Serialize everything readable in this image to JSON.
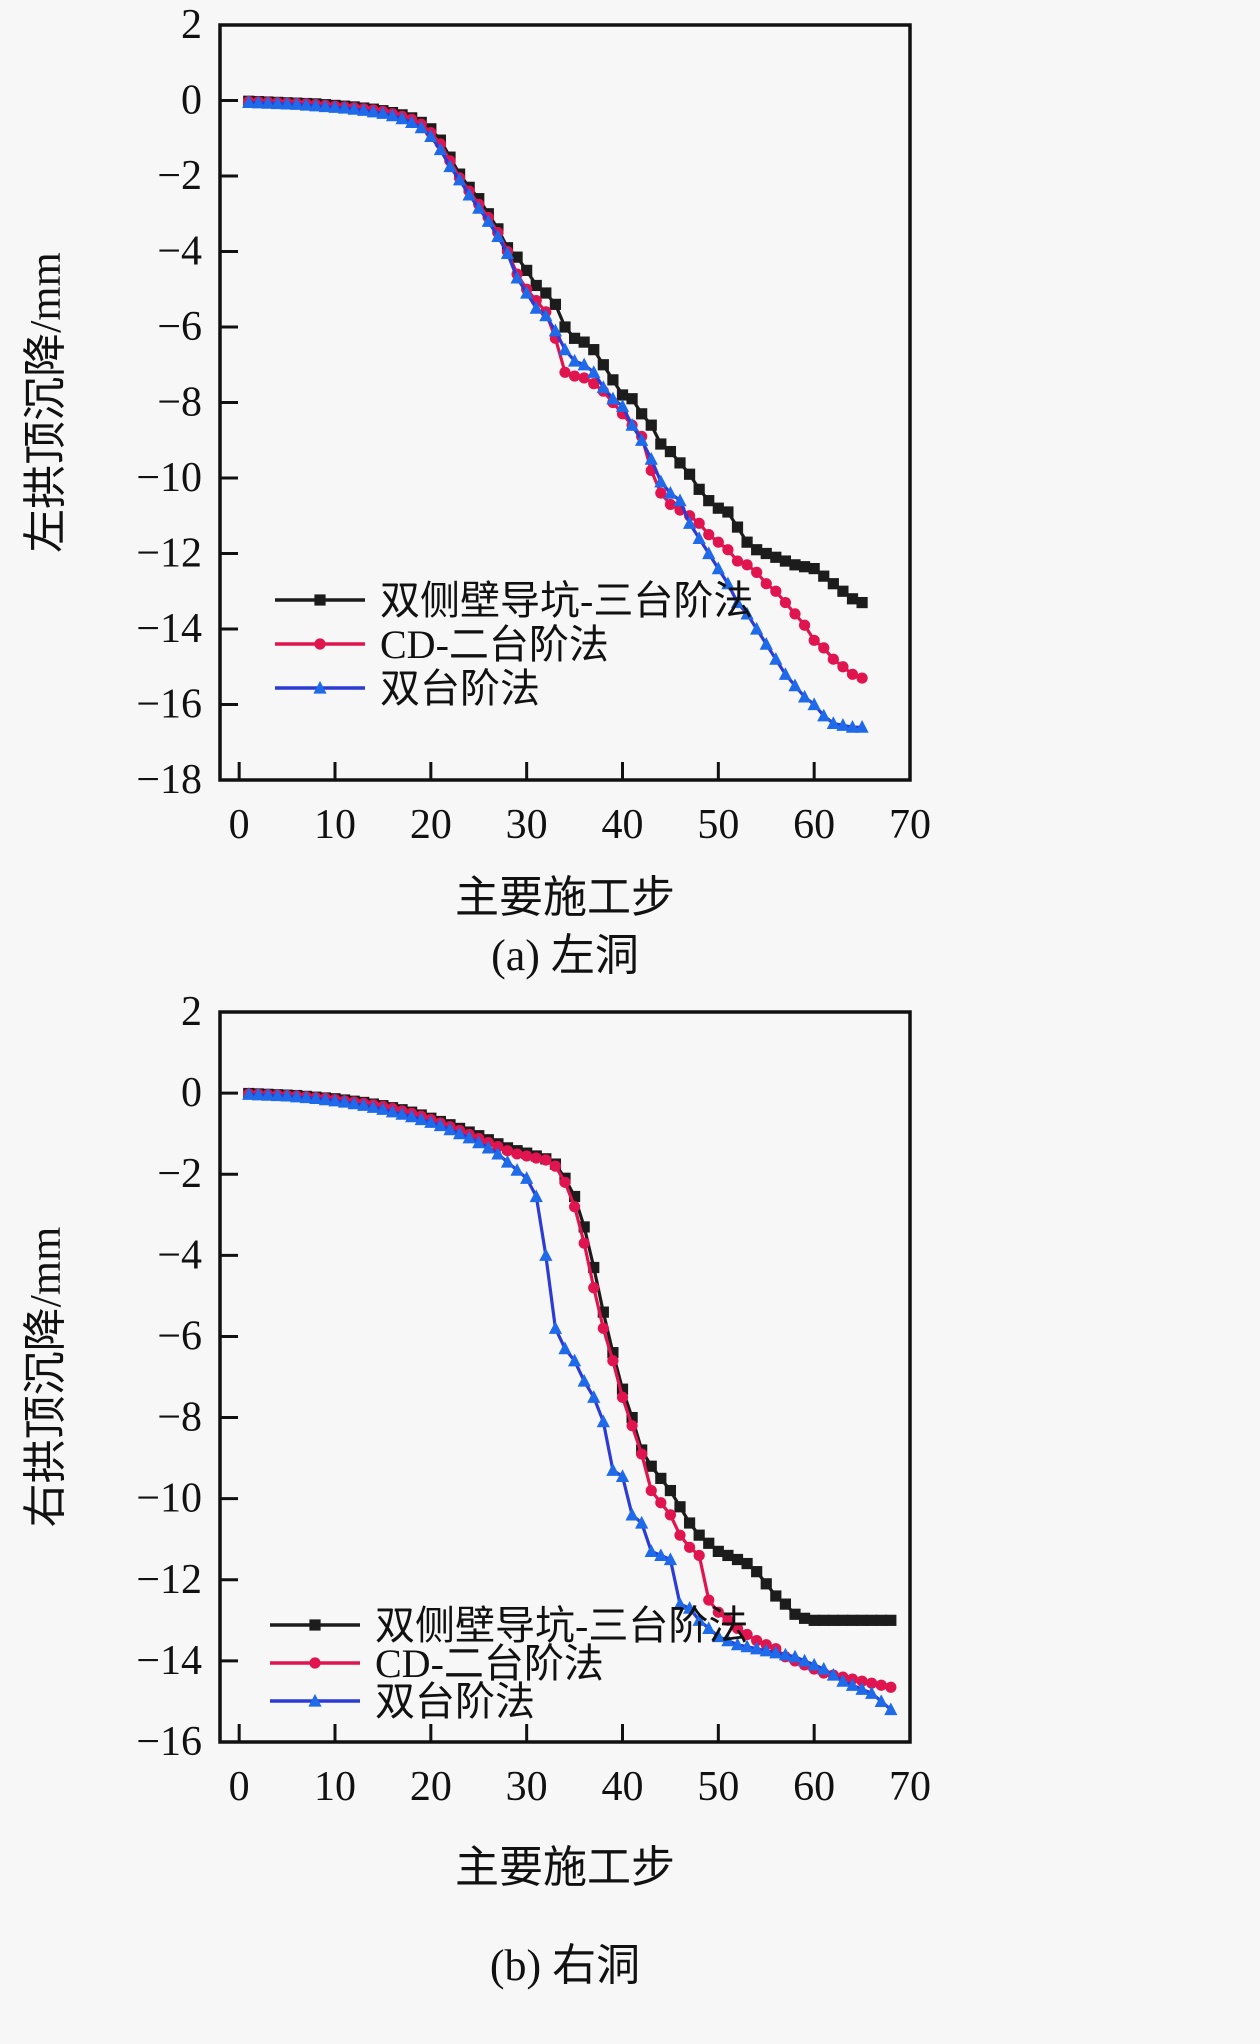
{
  "page": {
    "background": "#f7f7f7",
    "figure_kind": "two stacked line charts of tunnel crown settlement vs construction step"
  },
  "chart_data": [
    {
      "id": "left-tunnel",
      "type": "line",
      "title": "(a) 左洞",
      "xlabel": "主要施工步",
      "ylabel": "左拱顶沉降/mm",
      "xlim": [
        -2,
        70
      ],
      "ylim": [
        -18,
        2
      ],
      "xticks": [
        0,
        10,
        20,
        30,
        40,
        50,
        60,
        70
      ],
      "yticks": [
        2,
        0,
        -2,
        -4,
        -6,
        -8,
        -10,
        -12,
        -14,
        -16,
        -18
      ],
      "grid": false,
      "legend_position": "inside lower-left",
      "x_start_step": 1,
      "series": [
        {
          "name": "双侧壁导坑-三台阶法",
          "color": "#1c1c1c",
          "marker": "square",
          "values": [
            -0.02,
            -0.03,
            -0.04,
            -0.05,
            -0.06,
            -0.07,
            -0.08,
            -0.09,
            -0.11,
            -0.13,
            -0.15,
            -0.17,
            -0.2,
            -0.23,
            -0.27,
            -0.32,
            -0.38,
            -0.46,
            -0.58,
            -0.75,
            -1.05,
            -1.5,
            -1.95,
            -2.3,
            -2.6,
            -3.0,
            -3.4,
            -3.9,
            -4.15,
            -4.5,
            -4.9,
            -5.1,
            -5.4,
            -6.0,
            -6.3,
            -6.4,
            -6.6,
            -7.0,
            -7.4,
            -7.8,
            -7.9,
            -8.3,
            -8.6,
            -9.1,
            -9.3,
            -9.6,
            -9.9,
            -10.3,
            -10.6,
            -10.8,
            -10.9,
            -11.3,
            -11.7,
            -11.9,
            -12.0,
            -12.1,
            -12.2,
            -12.3,
            -12.35,
            -12.4,
            -12.6,
            -12.8,
            -13.0,
            -13.2,
            -13.3
          ]
        },
        {
          "name": "CD-二台阶法",
          "color": "#e0144e",
          "marker": "circle",
          "values": [
            -0.03,
            -0.04,
            -0.05,
            -0.06,
            -0.07,
            -0.08,
            -0.09,
            -0.11,
            -0.13,
            -0.15,
            -0.17,
            -0.19,
            -0.22,
            -0.25,
            -0.29,
            -0.35,
            -0.42,
            -0.5,
            -0.63,
            -0.85,
            -1.15,
            -1.6,
            -2.05,
            -2.4,
            -2.75,
            -3.1,
            -3.5,
            -4.0,
            -4.6,
            -5.0,
            -5.3,
            -5.6,
            -6.3,
            -7.2,
            -7.3,
            -7.35,
            -7.5,
            -7.7,
            -8.0,
            -8.3,
            -8.6,
            -8.9,
            -9.8,
            -10.4,
            -10.7,
            -10.85,
            -11.0,
            -11.2,
            -11.5,
            -11.7,
            -11.9,
            -12.2,
            -12.3,
            -12.5,
            -12.8,
            -13.0,
            -13.3,
            -13.6,
            -13.9,
            -14.3,
            -14.5,
            -14.8,
            -15.0,
            -15.2,
            -15.3
          ]
        },
        {
          "name": "双台阶法",
          "color": "#2b3bd4",
          "marker": "triangle",
          "marker_color": "#1f6ae8",
          "values": [
            -0.05,
            -0.06,
            -0.07,
            -0.08,
            -0.09,
            -0.1,
            -0.12,
            -0.14,
            -0.16,
            -0.18,
            -0.2,
            -0.23,
            -0.26,
            -0.3,
            -0.34,
            -0.4,
            -0.48,
            -0.58,
            -0.72,
            -0.95,
            -1.3,
            -1.75,
            -2.1,
            -2.5,
            -2.85,
            -3.2,
            -3.6,
            -4.05,
            -4.7,
            -5.1,
            -5.5,
            -5.7,
            -6.1,
            -6.6,
            -6.9,
            -7.0,
            -7.2,
            -7.6,
            -7.9,
            -8.1,
            -8.6,
            -9.0,
            -9.5,
            -10.1,
            -10.4,
            -10.6,
            -11.2,
            -11.6,
            -12.0,
            -12.4,
            -12.8,
            -13.3,
            -13.6,
            -14.0,
            -14.4,
            -14.8,
            -15.2,
            -15.5,
            -15.8,
            -16.0,
            -16.3,
            -16.5,
            -16.55,
            -16.6,
            -16.6
          ]
        }
      ]
    },
    {
      "id": "right-tunnel",
      "type": "line",
      "title": "(b) 右洞",
      "xlabel": "主要施工步",
      "ylabel": "右拱顶沉降/mm",
      "xlim": [
        -2,
        70
      ],
      "ylim": [
        -16,
        2
      ],
      "xticks": [
        0,
        10,
        20,
        30,
        40,
        50,
        60,
        70
      ],
      "yticks": [
        2,
        0,
        -2,
        -4,
        -6,
        -8,
        -10,
        -12,
        -14,
        -16
      ],
      "grid": false,
      "legend_position": "inside lower-left",
      "x_start_step": 1,
      "series": [
        {
          "name": "双侧壁导坑-三台阶法",
          "color": "#1c1c1c",
          "marker": "square",
          "values": [
            -0.01,
            -0.02,
            -0.03,
            -0.04,
            -0.05,
            -0.06,
            -0.08,
            -0.1,
            -0.12,
            -0.14,
            -0.17,
            -0.2,
            -0.23,
            -0.27,
            -0.31,
            -0.36,
            -0.41,
            -0.47,
            -0.54,
            -0.62,
            -0.7,
            -0.78,
            -0.87,
            -0.96,
            -1.05,
            -1.15,
            -1.25,
            -1.35,
            -1.42,
            -1.48,
            -1.55,
            -1.62,
            -1.75,
            -2.1,
            -2.55,
            -3.3,
            -4.3,
            -5.4,
            -6.4,
            -7.3,
            -8.0,
            -8.8,
            -9.2,
            -9.5,
            -9.8,
            -10.2,
            -10.6,
            -10.9,
            -11.1,
            -11.3,
            -11.4,
            -11.5,
            -11.6,
            -11.8,
            -12.1,
            -12.4,
            -12.6,
            -12.85,
            -12.95,
            -13.0,
            -13.0,
            -13.0,
            -13.0,
            -13.0,
            -13.0,
            -13.0,
            -13.0,
            -13.0
          ]
        },
        {
          "name": "CD-二台阶法",
          "color": "#e0144e",
          "marker": "circle",
          "values": [
            -0.02,
            -0.03,
            -0.04,
            -0.05,
            -0.06,
            -0.07,
            -0.09,
            -0.11,
            -0.13,
            -0.16,
            -0.19,
            -0.22,
            -0.25,
            -0.29,
            -0.33,
            -0.38,
            -0.44,
            -0.5,
            -0.57,
            -0.65,
            -0.74,
            -0.83,
            -0.92,
            -1.02,
            -1.12,
            -1.22,
            -1.32,
            -1.42,
            -1.5,
            -1.55,
            -1.6,
            -1.65,
            -1.8,
            -2.2,
            -2.8,
            -3.7,
            -4.8,
            -5.8,
            -6.6,
            -7.5,
            -8.2,
            -8.9,
            -9.8,
            -10.1,
            -10.4,
            -10.9,
            -11.2,
            -11.4,
            -12.5,
            -12.8,
            -13.0,
            -13.2,
            -13.35,
            -13.5,
            -13.6,
            -13.7,
            -13.9,
            -14.0,
            -14.1,
            -14.2,
            -14.3,
            -14.35,
            -14.4,
            -14.45,
            -14.5,
            -14.55,
            -14.6,
            -14.65
          ]
        },
        {
          "name": "双台阶法",
          "color": "#2b3bd4",
          "marker": "triangle",
          "marker_color": "#1f6ae8",
          "values": [
            -0.03,
            -0.04,
            -0.05,
            -0.06,
            -0.07,
            -0.09,
            -0.11,
            -0.13,
            -0.16,
            -0.19,
            -0.22,
            -0.26,
            -0.3,
            -0.35,
            -0.4,
            -0.46,
            -0.52,
            -0.58,
            -0.65,
            -0.72,
            -0.8,
            -0.9,
            -1.0,
            -1.1,
            -1.22,
            -1.35,
            -1.5,
            -1.7,
            -1.9,
            -2.1,
            -2.55,
            -4.0,
            -5.8,
            -6.3,
            -6.6,
            -7.1,
            -7.5,
            -8.1,
            -9.3,
            -9.45,
            -10.4,
            -10.6,
            -11.3,
            -11.4,
            -11.5,
            -12.6,
            -12.7,
            -13.0,
            -13.2,
            -13.4,
            -13.5,
            -13.6,
            -13.65,
            -13.7,
            -13.75,
            -13.8,
            -13.85,
            -13.9,
            -14.0,
            -14.1,
            -14.2,
            -14.35,
            -14.5,
            -14.6,
            -14.7,
            -14.8,
            -15.0,
            -15.2
          ]
        }
      ]
    }
  ]
}
